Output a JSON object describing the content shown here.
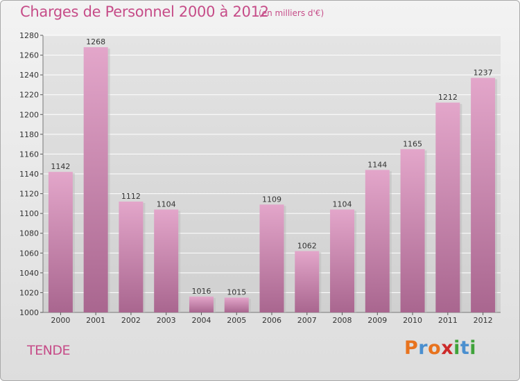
{
  "header": {
    "title": "Charges de Personnel 2000 à 2012",
    "subtitle": "(en milliers d'€)"
  },
  "footer": {
    "commune": "TENDE",
    "logo": {
      "letters": [
        "P",
        "r",
        "o",
        "x",
        "i",
        "t",
        "i"
      ]
    }
  },
  "colors": {
    "title": "#c64c88",
    "bar_top": "#e3a6ca",
    "bar_bottom": "#a9668f",
    "grid": "#ffffff",
    "plot_bg": "#d8d8d8",
    "logo": [
      "#e8731e",
      "#4a8fcf",
      "#e8731e",
      "#cc2a2a",
      "#3fa33a",
      "#4a8fcf",
      "#3fa33a"
    ]
  },
  "chart_data": {
    "type": "bar",
    "title": "Charges de Personnel 2000 à 2012",
    "subtitle": "(en milliers d'€)",
    "categories": [
      "2000",
      "2001",
      "2002",
      "2003",
      "2004",
      "2005",
      "2006",
      "2007",
      "2008",
      "2009",
      "2010",
      "2011",
      "2012"
    ],
    "values": [
      1142,
      1268,
      1112,
      1104,
      1016,
      1015,
      1109,
      1062,
      1104,
      1144,
      1165,
      1212,
      1237
    ],
    "data_labels": [
      "1142",
      "1268",
      "1112",
      "1104",
      "1016",
      "1015",
      "1109",
      "1062",
      "1104",
      "1144",
      "1165",
      "1212",
      "1237"
    ],
    "ylim": [
      1000,
      1280
    ],
    "yticks": [
      1000,
      1020,
      1040,
      1060,
      1080,
      1100,
      1120,
      1140,
      1160,
      1180,
      1200,
      1220,
      1240,
      1260,
      1280
    ],
    "grid": true,
    "legend": "none"
  }
}
